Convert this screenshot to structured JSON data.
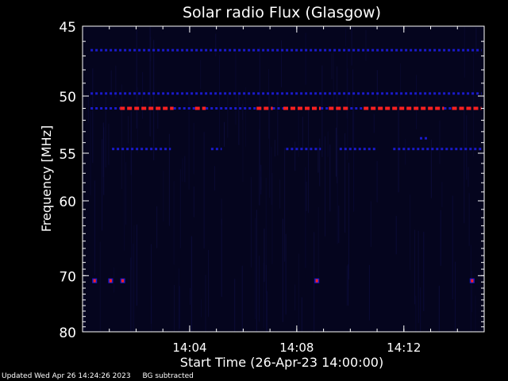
{
  "chart_data": {
    "type": "heatmap",
    "title": "Solar radio Flux (Glasgow)",
    "xlabel": "Start Time (26-Apr-23 14:00:00)",
    "ylabel": "Frequency [MHz]",
    "x_range_minutes": [
      0,
      15
    ],
    "x_ticks": [
      {
        "minute": 4,
        "label": "14:04"
      },
      {
        "minute": 8,
        "label": "14:08"
      },
      {
        "minute": 12,
        "label": "14:12"
      }
    ],
    "y_range_mhz": [
      45,
      80
    ],
    "y_scale": "reciprocal",
    "y_ticks": [
      {
        "mhz": 45,
        "label": "45"
      },
      {
        "mhz": 50,
        "label": "50"
      },
      {
        "mhz": 55,
        "label": "55"
      },
      {
        "mhz": 60,
        "label": "60"
      },
      {
        "mhz": 70,
        "label": "70"
      },
      {
        "mhz": 80,
        "label": "80"
      }
    ],
    "colors": {
      "background": "#05051e",
      "weak": "#1a1acc",
      "strong": "#ff2020",
      "axes": "#ffffff"
    },
    "bands": [
      {
        "mhz": 49.8,
        "intensity": "weak",
        "segments": [
          [
            0.3,
            14.9
          ]
        ]
      },
      {
        "mhz": 51.0,
        "intensity": "strong",
        "segments": [
          [
            1.4,
            3.4
          ],
          [
            4.2,
            4.6
          ],
          [
            6.5,
            7.1
          ],
          [
            7.5,
            8.9
          ],
          [
            9.2,
            10.0
          ],
          [
            10.5,
            13.5
          ],
          [
            13.8,
            14.9
          ]
        ]
      },
      {
        "mhz": 51.0,
        "intensity": "weak",
        "segments": [
          [
            0.3,
            1.4
          ],
          [
            3.4,
            4.2
          ],
          [
            4.6,
            6.5
          ],
          [
            7.1,
            7.5
          ],
          [
            8.9,
            9.2
          ],
          [
            10.0,
            10.5
          ],
          [
            13.5,
            13.8
          ]
        ]
      },
      {
        "mhz": 54.6,
        "intensity": "weak",
        "segments": [
          [
            1.1,
            3.3
          ],
          [
            4.8,
            5.2
          ],
          [
            7.6,
            8.9
          ],
          [
            9.6,
            11.0
          ],
          [
            11.6,
            14.9
          ]
        ]
      },
      {
        "mhz": 53.6,
        "intensity": "weak",
        "segments": [
          [
            12.6,
            12.9
          ]
        ]
      },
      {
        "mhz": 46.6,
        "intensity": "weak",
        "segments": [
          [
            0.3,
            14.9
          ]
        ]
      }
    ],
    "bursts": [
      {
        "minute": 0.45,
        "mhz": 70.8
      },
      {
        "minute": 1.05,
        "mhz": 70.8
      },
      {
        "minute": 1.5,
        "mhz": 70.8
      },
      {
        "minute": 8.75,
        "mhz": 70.8
      },
      {
        "minute": 14.55,
        "mhz": 70.8
      }
    ]
  },
  "footer": {
    "updated": "Updated Wed Apr 26 14:24:26 2023",
    "mode": "BG subtracted"
  }
}
